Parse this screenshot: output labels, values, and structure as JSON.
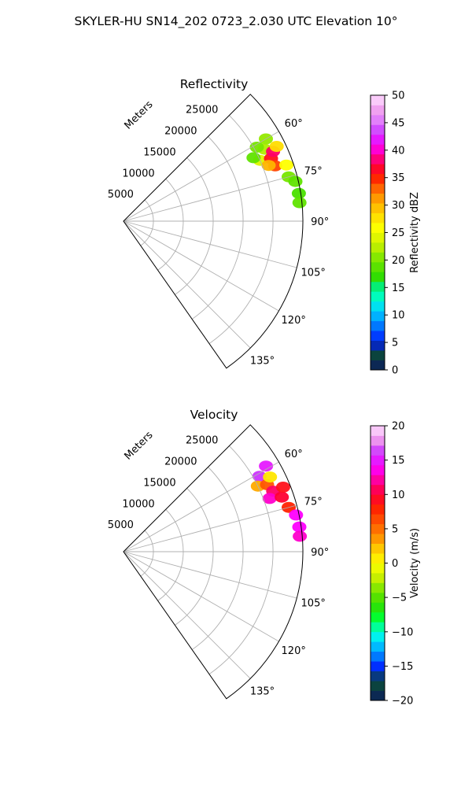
{
  "figure_title": "SKYLER-HU  SN14_202  0723_2.030 UTC Elevation 10°",
  "chart_data": [
    {
      "type": "polar-sector",
      "title": "Reflectivity",
      "radial_label": "Meters",
      "r_ticks": [
        5000,
        10000,
        15000,
        20000,
        25000
      ],
      "r_tick_labels": [
        "5000",
        "10000",
        "15000",
        "20000",
        "25000"
      ],
      "rmax": 30000,
      "theta_range_deg": [
        45,
        145
      ],
      "theta_ticks_deg": [
        60,
        75,
        90,
        105,
        120,
        135
      ],
      "theta_tick_labels": [
        "60°",
        "75°",
        "90°",
        "105°",
        "120°",
        "135°"
      ],
      "grid": true,
      "colorbar": {
        "label": "Reflectivity dBZ",
        "min": 0,
        "max": 50,
        "ticks": [
          0,
          5,
          10,
          15,
          20,
          25,
          30,
          35,
          40,
          45,
          50
        ],
        "tick_labels": [
          "0",
          "5",
          "10",
          "15",
          "20",
          "25",
          "30",
          "35",
          "40",
          "45",
          "50"
        ],
        "stops": [
          {
            "v": 0,
            "c": "#0d1a5c"
          },
          {
            "v": 2,
            "c": "#0a3a4a"
          },
          {
            "v": 3.5,
            "c": "#0d5030"
          },
          {
            "v": 5,
            "c": "#0014ff"
          },
          {
            "v": 7,
            "c": "#0055ff"
          },
          {
            "v": 9,
            "c": "#0099ff"
          },
          {
            "v": 11,
            "c": "#00d4ff"
          },
          {
            "v": 13,
            "c": "#00ffcc"
          },
          {
            "v": 15,
            "c": "#00f080"
          },
          {
            "v": 17,
            "c": "#33dd00"
          },
          {
            "v": 20,
            "c": "#77e600"
          },
          {
            "v": 23,
            "c": "#ccf000"
          },
          {
            "v": 26,
            "c": "#ffff00"
          },
          {
            "v": 29,
            "c": "#ffcc00"
          },
          {
            "v": 32,
            "c": "#ff8800"
          },
          {
            "v": 35,
            "c": "#ff2200"
          },
          {
            "v": 37,
            "c": "#ff0033"
          },
          {
            "v": 39,
            "c": "#ff0099"
          },
          {
            "v": 41,
            "c": "#ff00ff"
          },
          {
            "v": 43,
            "c": "#cc33ff"
          },
          {
            "v": 45,
            "c": "#dd77ff"
          },
          {
            "v": 47,
            "c": "#ee99ee"
          },
          {
            "v": 50,
            "c": "#ffe0ff"
          }
        ]
      },
      "echoes": [
        {
          "r": 26500,
          "theta": 63,
          "v": 22
        },
        {
          "r": 25500,
          "theta": 61,
          "v": 20
        },
        {
          "r": 27500,
          "theta": 60,
          "v": 21
        },
        {
          "r": 25000,
          "theta": 66,
          "v": 24
        },
        {
          "r": 26800,
          "theta": 67,
          "v": 36
        },
        {
          "r": 27600,
          "theta": 65,
          "v": 38
        },
        {
          "r": 27000,
          "theta": 70,
          "v": 34
        },
        {
          "r": 26000,
          "theta": 69,
          "v": 30
        },
        {
          "r": 28500,
          "theta": 64,
          "v": 28
        },
        {
          "r": 24200,
          "theta": 64,
          "v": 19
        },
        {
          "r": 28800,
          "theta": 71,
          "v": 26
        },
        {
          "r": 28600,
          "theta": 75,
          "v": 20
        },
        {
          "r": 29500,
          "theta": 77,
          "v": 19
        },
        {
          "r": 29700,
          "theta": 81,
          "v": 18
        },
        {
          "r": 29600,
          "theta": 84,
          "v": 19
        }
      ]
    },
    {
      "type": "polar-sector",
      "title": "Velocity",
      "radial_label": "Meters",
      "r_ticks": [
        5000,
        10000,
        15000,
        20000,
        25000
      ],
      "r_tick_labels": [
        "5000",
        "10000",
        "15000",
        "20000",
        "25000"
      ],
      "rmax": 30000,
      "theta_range_deg": [
        45,
        145
      ],
      "theta_ticks_deg": [
        60,
        75,
        90,
        105,
        120,
        135
      ],
      "theta_tick_labels": [
        "60°",
        "75°",
        "90°",
        "105°",
        "120°",
        "135°"
      ],
      "grid": true,
      "colorbar": {
        "label": "Velocity (m/s)",
        "min": -20,
        "max": 20,
        "ticks": [
          -20,
          -15,
          -10,
          -5,
          0,
          5,
          10,
          15,
          20
        ],
        "tick_labels": [
          "−20",
          "−15",
          "−10",
          "−5",
          "0",
          "5",
          "10",
          "15",
          "20"
        ],
        "stops": [
          {
            "v": -20,
            "c": "#0d1a5c"
          },
          {
            "v": -18.5,
            "c": "#0a3a4a"
          },
          {
            "v": -17,
            "c": "#0d5030"
          },
          {
            "v": -15.5,
            "c": "#0014ff"
          },
          {
            "v": -14,
            "c": "#0066ff"
          },
          {
            "v": -12.5,
            "c": "#00aaff"
          },
          {
            "v": -11,
            "c": "#00eeff"
          },
          {
            "v": -9.5,
            "c": "#00ffaa"
          },
          {
            "v": -8,
            "c": "#00ff33"
          },
          {
            "v": -6,
            "c": "#33dd00"
          },
          {
            "v": -4,
            "c": "#77e600"
          },
          {
            "v": -2,
            "c": "#ccf000"
          },
          {
            "v": 0,
            "c": "#ffff00"
          },
          {
            "v": 2,
            "c": "#ffcc00"
          },
          {
            "v": 4,
            "c": "#ff8800"
          },
          {
            "v": 6,
            "c": "#ff5500"
          },
          {
            "v": 8,
            "c": "#ff2200"
          },
          {
            "v": 10,
            "c": "#ff0033"
          },
          {
            "v": 12,
            "c": "#ff0099"
          },
          {
            "v": 14,
            "c": "#ff00ff"
          },
          {
            "v": 16,
            "c": "#cc33ff"
          },
          {
            "v": 18,
            "c": "#ee99ee"
          },
          {
            "v": 20,
            "c": "#ffe0ff"
          }
        ]
      },
      "echoes": [
        {
          "r": 26000,
          "theta": 61,
          "v": 16
        },
        {
          "r": 27800,
          "theta": 59,
          "v": 15
        },
        {
          "r": 25000,
          "theta": 64,
          "v": 3
        },
        {
          "r": 26500,
          "theta": 65,
          "v": 6
        },
        {
          "r": 27500,
          "theta": 63,
          "v": 1
        },
        {
          "r": 27000,
          "theta": 68,
          "v": 11
        },
        {
          "r": 26000,
          "theta": 70,
          "v": 13
        },
        {
          "r": 28000,
          "theta": 71,
          "v": 10
        },
        {
          "r": 28800,
          "theta": 68,
          "v": 9
        },
        {
          "r": 28600,
          "theta": 75,
          "v": 8
        },
        {
          "r": 29500,
          "theta": 78,
          "v": 14
        },
        {
          "r": 29700,
          "theta": 82,
          "v": 14
        },
        {
          "r": 29600,
          "theta": 85,
          "v": 13
        }
      ]
    }
  ]
}
